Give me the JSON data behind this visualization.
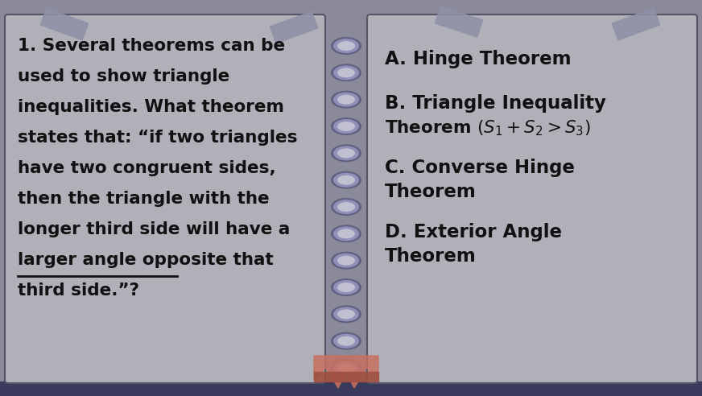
{
  "bg_color": "#8a8a9a",
  "bottom_bar_color": "#3a3a5c",
  "left_panel_bg": "#b0b0b8",
  "right_panel_bg": "#b0b0b8",
  "panel_border_color": "#555566",
  "spine_color": "#7070a0",
  "spine_hole_outer": "#6060808",
  "spine_hole_color": "#9090b8",
  "spine_hole_inner": "#c0c0d0",
  "tape_color": "#9090a8",
  "question_text": "1. Several theorems can be\nused to show triangle\ninequalities. What theorem\nstates that: “if two triangles\nhave two congruent sides,\nthen the triangle with the\nlonger third side will have a\nlarger angle opposite that\nthird side.”?",
  "answer_a": "A. Hinge Theorem",
  "answer_b_line1": "B. Triangle Inequality",
  "answer_c_line1": "C. Converse Hinge",
  "answer_c_line2": "Theorem",
  "answer_d_line1": "D. Exterior Angle",
  "answer_d_line2": "Theorem",
  "text_color": "#111111",
  "crown_color": "#c87060",
  "crown_shadow": "#a05040",
  "font_size_question": 15.5,
  "font_size_answer": 16.5
}
